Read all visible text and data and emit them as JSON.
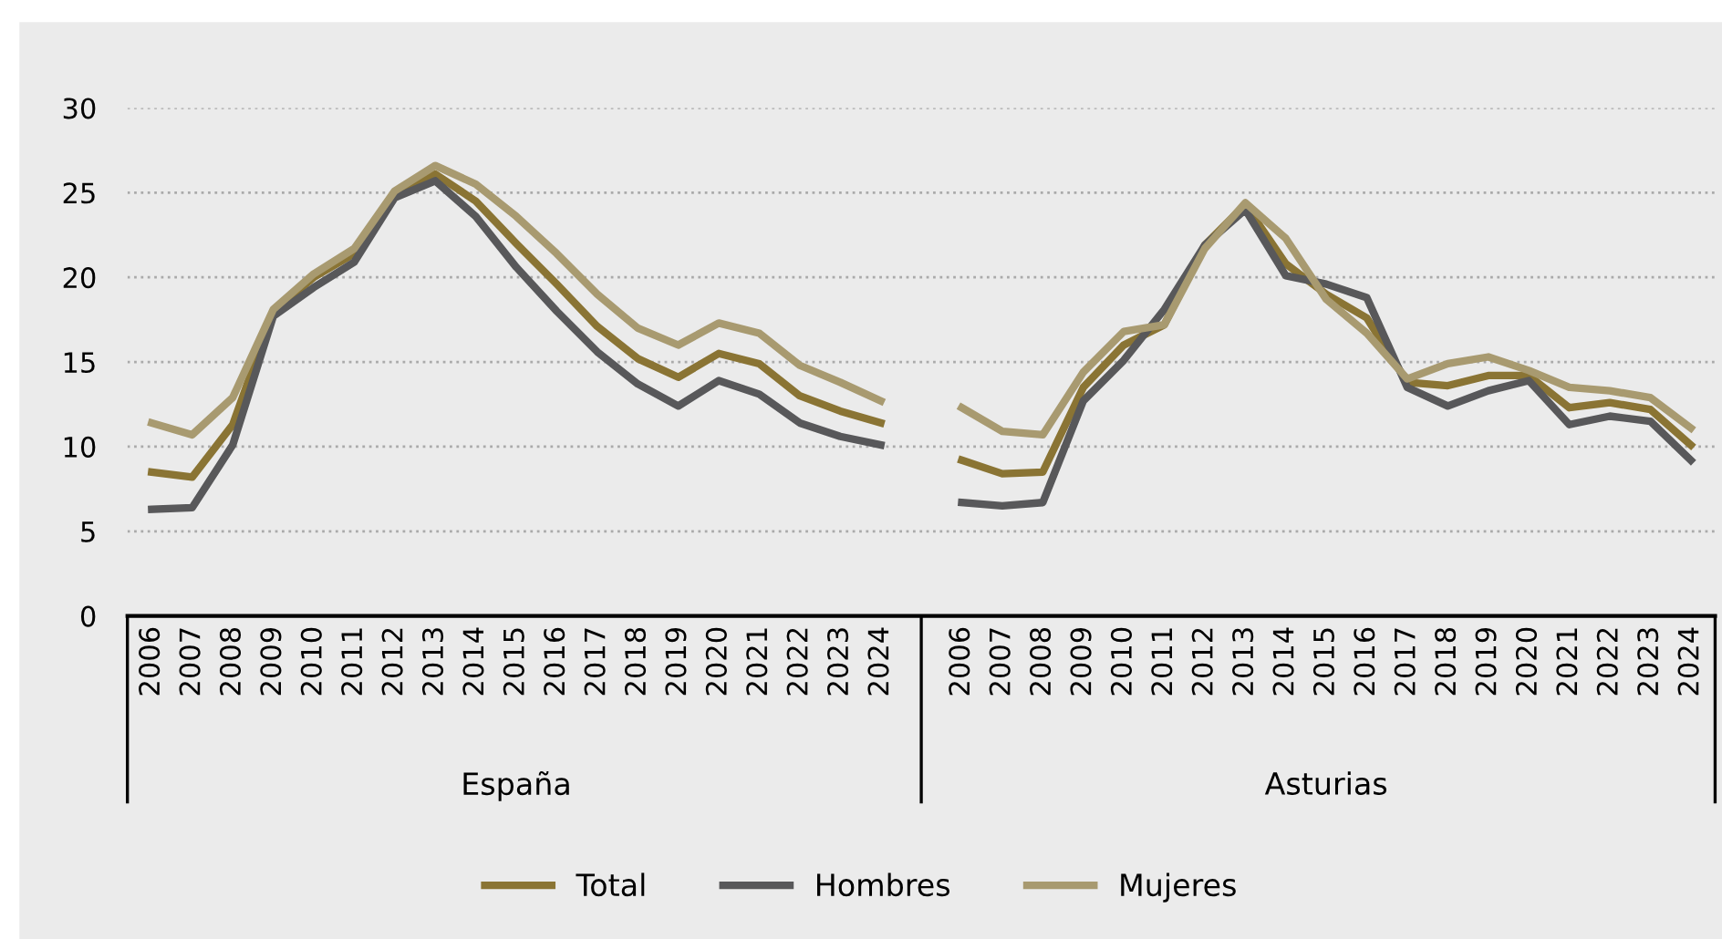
{
  "chart_data": {
    "type": "line",
    "categories": [
      "2006",
      "2007",
      "2008",
      "2009",
      "2010",
      "2011",
      "2012",
      "2013",
      "2014",
      "2015",
      "2016",
      "2017",
      "2018",
      "2019",
      "2020",
      "2021",
      "2022",
      "2023",
      "2024",
      "2006",
      "2007",
      "2008",
      "2009",
      "2010",
      "2011",
      "2012",
      "2013",
      "2014",
      "2015",
      "2016",
      "2017",
      "2018",
      "2019",
      "2020",
      "2021",
      "2022",
      "2023",
      "2024"
    ],
    "series": [
      {
        "name": "Total",
        "color": "#8a7434",
        "values": [
          8.5,
          8.2,
          11.3,
          18.0,
          20.0,
          21.4,
          25.0,
          26.1,
          24.5,
          22.0,
          19.6,
          17.1,
          15.2,
          14.1,
          15.5,
          14.9,
          13.0,
          12.1,
          11.4,
          9.2,
          8.4,
          8.5,
          13.5,
          16.0,
          17.2,
          21.9,
          24.3,
          20.8,
          19.0,
          17.6,
          13.8,
          13.6,
          14.2,
          14.2,
          12.3,
          12.6,
          12.2,
          10.1
        ]
      },
      {
        "name": "Hombres",
        "color": "#58585a",
        "values": [
          6.3,
          6.4,
          10.1,
          17.7,
          19.4,
          20.9,
          24.7,
          25.7,
          23.6,
          20.6,
          18.0,
          15.6,
          13.7,
          12.4,
          13.9,
          13.1,
          11.4,
          10.6,
          10.1,
          6.7,
          6.5,
          6.7,
          12.7,
          15.1,
          18.1,
          21.9,
          24.0,
          20.1,
          19.6,
          18.8,
          13.5,
          12.4,
          13.3,
          13.9,
          11.3,
          11.8,
          11.5,
          9.2
        ]
      },
      {
        "name": "Mujeres",
        "color": "#a89a70",
        "values": [
          11.4,
          10.7,
          12.9,
          18.1,
          20.2,
          21.7,
          25.1,
          26.6,
          25.5,
          23.6,
          21.4,
          19.0,
          17.0,
          16.0,
          17.3,
          16.7,
          14.8,
          13.8,
          12.7,
          12.3,
          10.9,
          10.7,
          14.4,
          16.8,
          17.2,
          21.7,
          24.4,
          22.3,
          18.7,
          16.7,
          14.0,
          14.9,
          15.3,
          14.5,
          13.5,
          13.3,
          12.9,
          11.1
        ]
      }
    ],
    "annotations": [
      "España",
      "Asturias"
    ],
    "ylim": [
      0,
      30
    ],
    "yticks": [
      0,
      5,
      10,
      15,
      20,
      25,
      30
    ],
    "grid": "y",
    "legend": "bottom",
    "marker": "none",
    "line_style": "solid"
  }
}
